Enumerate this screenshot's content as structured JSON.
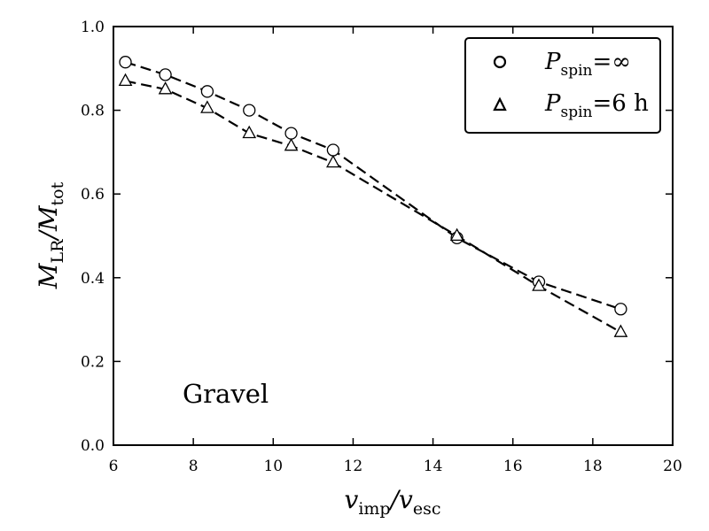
{
  "chart_data": {
    "type": "line",
    "xlim": [
      6,
      20
    ],
    "ylim": [
      0.0,
      1.0
    ],
    "x_ticks": [
      6,
      8,
      10,
      12,
      14,
      16,
      18,
      20
    ],
    "y_ticks": [
      0.0,
      0.2,
      0.4,
      0.6,
      0.8,
      1.0
    ],
    "x_tick_labels": [
      "6",
      "8",
      "10",
      "12",
      "14",
      "16",
      "18",
      "20"
    ],
    "y_tick_labels": [
      "0.0",
      "0.2",
      "0.4",
      "0.6",
      "0.8",
      "1.0"
    ],
    "xlabel": {
      "main": "v",
      "sub1": "imp",
      "sep": "/v",
      "sub2": "esc"
    },
    "ylabel": {
      "main": "M",
      "sub1": "LR",
      "sep": "/M",
      "sub2": "tot"
    },
    "annotation": "Gravel",
    "grid": false,
    "legend_position": "top-right",
    "series": [
      {
        "name": "P_spin = ∞",
        "legend": {
          "main": "P",
          "sub": "spin",
          "rest": "=∞"
        },
        "marker": "circle",
        "line_style": "dashed",
        "color": "#000000",
        "x": [
          6.3,
          7.3,
          8.35,
          9.4,
          10.45,
          11.5,
          14.6,
          16.65,
          18.7
        ],
        "y": [
          0.915,
          0.885,
          0.845,
          0.8,
          0.745,
          0.705,
          0.495,
          0.39,
          0.325
        ]
      },
      {
        "name": "P_spin = 6 h",
        "legend": {
          "main": "P",
          "sub": "spin",
          "rest": "=6 h"
        },
        "marker": "triangle",
        "line_style": "dashed",
        "color": "#000000",
        "x": [
          6.3,
          7.3,
          8.35,
          9.4,
          10.45,
          11.5,
          14.6,
          16.65,
          18.7
        ],
        "y": [
          0.87,
          0.85,
          0.805,
          0.745,
          0.715,
          0.675,
          0.5,
          0.38,
          0.27
        ]
      }
    ]
  }
}
